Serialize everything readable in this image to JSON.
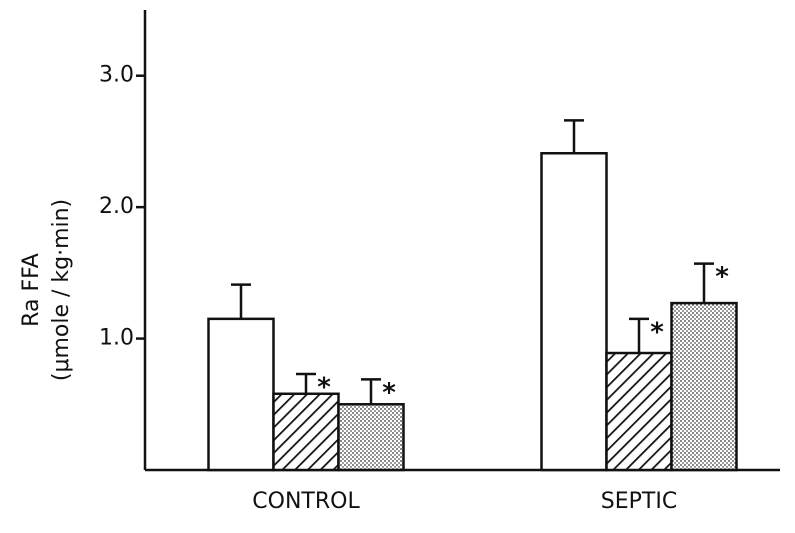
{
  "chart_data": {
    "type": "bar",
    "ylabel": [
      "Ra FFA",
      "(μmole / kg·min)"
    ],
    "categories": [
      "CONTROL",
      "SEPTIC"
    ],
    "series": [
      {
        "color": "#ffffff",
        "pattern": "none",
        "values": [
          1.15,
          2.41
        ],
        "errors": [
          0.26,
          0.25
        ]
      },
      {
        "color": "#ffffff",
        "pattern": "hatch",
        "values": [
          0.58,
          0.89
        ],
        "errors": [
          0.15,
          0.26
        ],
        "annotations": [
          "*",
          "*"
        ]
      },
      {
        "color": "#ffffff",
        "pattern": "dots",
        "values": [
          0.5,
          1.27
        ],
        "errors": [
          0.19,
          0.3
        ],
        "annotations": [
          "*",
          "*"
        ]
      }
    ],
    "ylim": [
      0,
      3.5
    ],
    "yticks": [
      {
        "value": 1,
        "label": "1.0"
      },
      {
        "value": 2,
        "label": "2.0"
      },
      {
        "value": 3,
        "label": "3.0"
      }
    ],
    "grid": false
  }
}
